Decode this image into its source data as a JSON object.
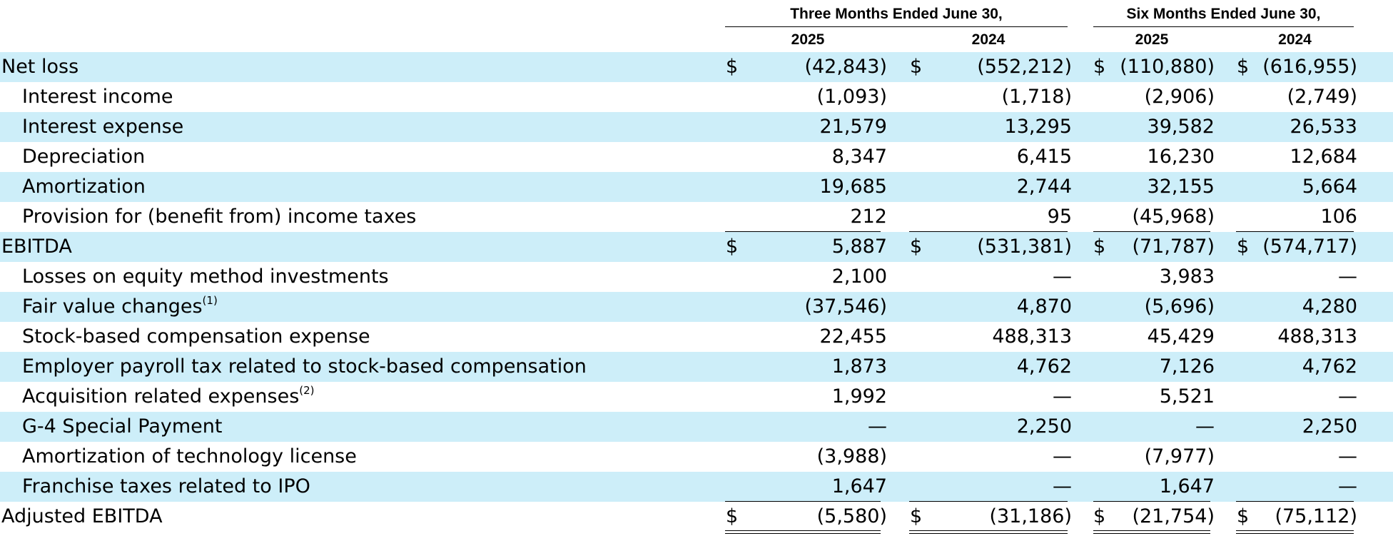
{
  "header": {
    "groups": [
      "Three Months Ended June 30,",
      "Six Months Ended June 30,"
    ],
    "years": [
      "2025",
      "2024",
      "2025",
      "2024"
    ]
  },
  "rows": [
    {
      "label": "Net loss",
      "sup": "",
      "indent": false,
      "shade": true,
      "dollar": true,
      "values": [
        "(42,843)",
        "(552,212)",
        "(110,880)",
        "(616,955)"
      ]
    },
    {
      "label": "Interest income",
      "sup": "",
      "indent": true,
      "shade": false,
      "dollar": false,
      "values": [
        "(1,093)",
        "(1,718)",
        "(2,906)",
        "(2,749)"
      ]
    },
    {
      "label": "Interest expense",
      "sup": "",
      "indent": true,
      "shade": true,
      "dollar": false,
      "values": [
        "21,579",
        "13,295",
        "39,582",
        "26,533"
      ]
    },
    {
      "label": "Depreciation",
      "sup": "",
      "indent": true,
      "shade": false,
      "dollar": false,
      "values": [
        "8,347",
        "6,415",
        "16,230",
        "12,684"
      ]
    },
    {
      "label": "Amortization",
      "sup": "",
      "indent": true,
      "shade": true,
      "dollar": false,
      "values": [
        "19,685",
        "2,744",
        "32,155",
        "5,664"
      ]
    },
    {
      "label": "Provision for (benefit from) income taxes",
      "sup": "",
      "indent": true,
      "shade": false,
      "dollar": false,
      "values": [
        "212",
        "95",
        "(45,968)",
        "106"
      ]
    },
    {
      "label": "EBITDA",
      "sup": "",
      "indent": false,
      "shade": true,
      "dollar": true,
      "values": [
        "5,887",
        "(531,381)",
        "(71,787)",
        "(574,717)"
      ]
    },
    {
      "label": "Losses on equity method investments",
      "sup": "",
      "indent": true,
      "shade": false,
      "dollar": false,
      "values": [
        "2,100",
        "—",
        "3,983",
        "—"
      ]
    },
    {
      "label": "Fair value changes",
      "sup": "(1)",
      "indent": true,
      "shade": true,
      "dollar": false,
      "values": [
        "(37,546)",
        "4,870",
        "(5,696)",
        "4,280"
      ]
    },
    {
      "label": "Stock-based compensation expense",
      "sup": "",
      "indent": true,
      "shade": false,
      "dollar": false,
      "values": [
        "22,455",
        "488,313",
        "45,429",
        "488,313"
      ]
    },
    {
      "label": "Employer payroll tax related to stock-based compensation",
      "sup": "",
      "indent": true,
      "shade": true,
      "dollar": false,
      "values": [
        "1,873",
        "4,762",
        "7,126",
        "4,762"
      ]
    },
    {
      "label": "Acquisition related expenses",
      "sup": "(2)",
      "indent": true,
      "shade": false,
      "dollar": false,
      "values": [
        "1,992",
        "—",
        "5,521",
        "—"
      ]
    },
    {
      "label": "G-4 Special Payment",
      "sup": "",
      "indent": true,
      "shade": true,
      "dollar": false,
      "values": [
        "—",
        "2,250",
        "—",
        "2,250"
      ]
    },
    {
      "label": "Amortization of technology license",
      "sup": "",
      "indent": true,
      "shade": false,
      "dollar": false,
      "values": [
        "(3,988)",
        "—",
        "(7,977)",
        "—"
      ]
    },
    {
      "label": "Franchise taxes related to IPO",
      "sup": "",
      "indent": true,
      "shade": true,
      "dollar": false,
      "values": [
        "1,647",
        "—",
        "1,647",
        "—"
      ]
    },
    {
      "label": "Adjusted EBITDA",
      "sup": "",
      "indent": false,
      "shade": false,
      "dollar": true,
      "values": [
        "(5,580)",
        "(31,186)",
        "(21,754)",
        "(75,112)"
      ]
    }
  ],
  "currency_symbol": "$",
  "colors": {
    "row_shade": "#cdeef9",
    "text": "#000000"
  }
}
